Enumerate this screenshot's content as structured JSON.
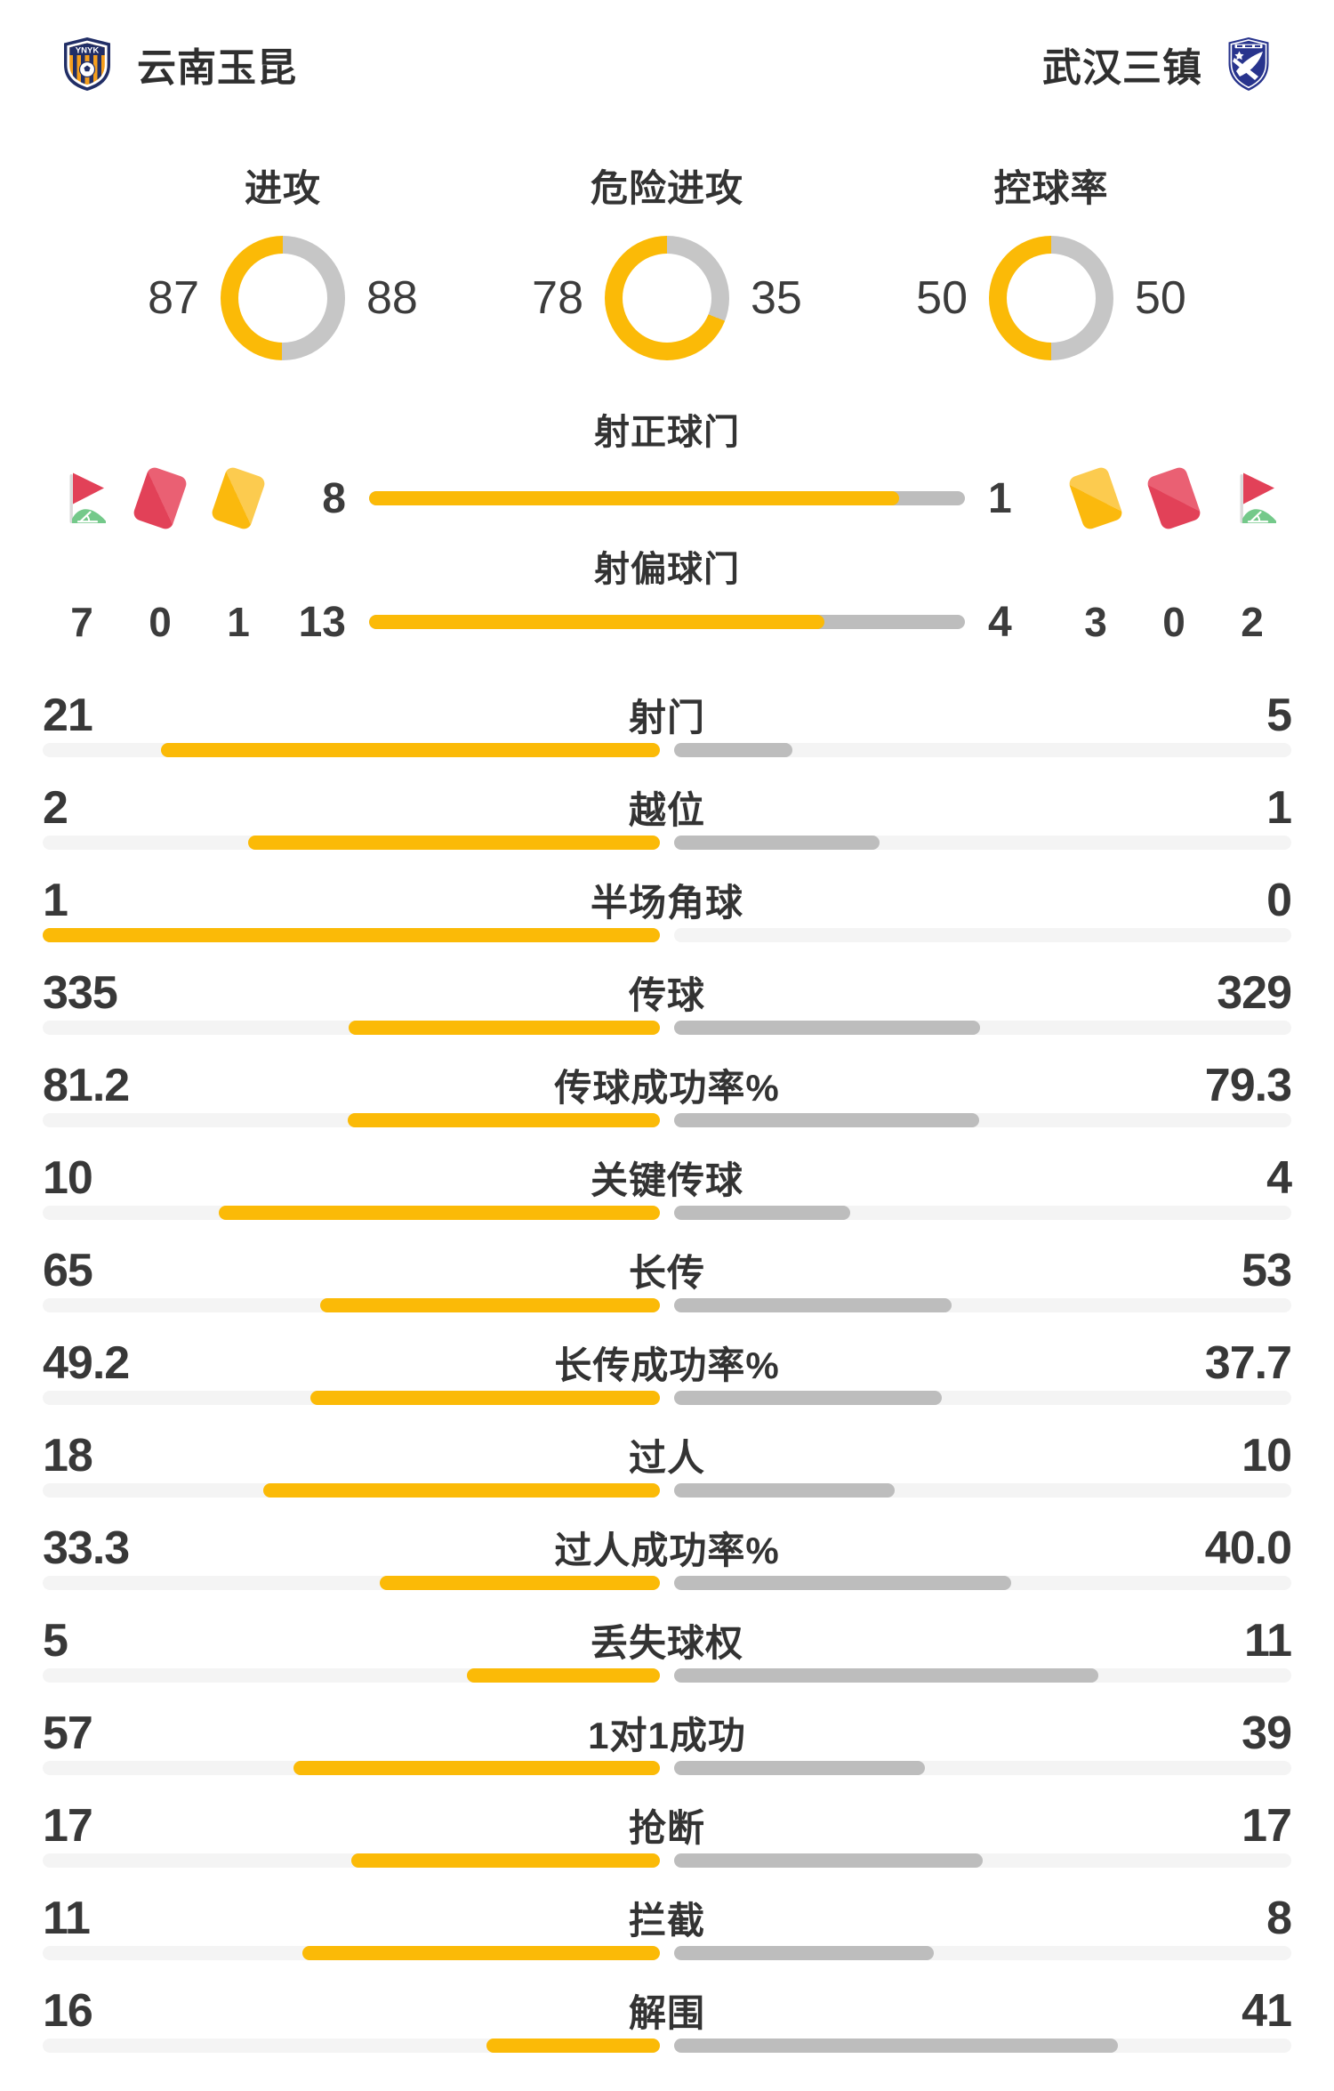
{
  "colors": {
    "accent_yellow": "#FBBA07",
    "bar_gray": "#BDBDBD",
    "bar_track": "#F4F4F4",
    "donut_gray": "#C6C6C6",
    "card_red": "#E24158",
    "card_red_light": "#EA6073",
    "card_yellow": "#FBB90D",
    "card_yellow_light": "#FCCB4F",
    "flag_green": "#74C98A",
    "text_dark": "#3C3C3C",
    "home_navy": "#212E66",
    "home_orange": "#F49E1E",
    "away_navy": "#28348D"
  },
  "header": {
    "home": {
      "name": "云南玉昆",
      "logo_text": "YNYK"
    },
    "away": {
      "name": "武汉三镇"
    }
  },
  "donuts": [
    {
      "title": "进攻",
      "home": "87",
      "away": "88"
    },
    {
      "title": "危险进攻",
      "home": "78",
      "away": "35"
    },
    {
      "title": "控球率",
      "home": "50",
      "away": "50"
    }
  ],
  "shots": {
    "rows": [
      {
        "label": "射正球门",
        "home": "8",
        "away": "1"
      },
      {
        "label": "射偏球门",
        "home": "13",
        "away": "4"
      }
    ],
    "home_discipline": [
      {
        "icon": "corner-flag",
        "count": "7"
      },
      {
        "icon": "red-card",
        "count": "0"
      },
      {
        "icon": "yellow-card",
        "count": "1"
      }
    ],
    "away_discipline": [
      {
        "icon": "yellow-card",
        "count": "3"
      },
      {
        "icon": "red-card",
        "count": "0"
      },
      {
        "icon": "corner-flag",
        "count": "2"
      }
    ]
  },
  "stats": [
    {
      "label": "射门",
      "home": "21",
      "away": "5"
    },
    {
      "label": "越位",
      "home": "2",
      "away": "1"
    },
    {
      "label": "半场角球",
      "home": "1",
      "away": "0"
    },
    {
      "label": "传球",
      "home": "335",
      "away": "329"
    },
    {
      "label": "传球成功率%",
      "home": "81.2",
      "away": "79.3"
    },
    {
      "label": "关键传球",
      "home": "10",
      "away": "4"
    },
    {
      "label": "长传",
      "home": "65",
      "away": "53"
    },
    {
      "label": "长传成功率%",
      "home": "49.2",
      "away": "37.7"
    },
    {
      "label": "过人",
      "home": "18",
      "away": "10"
    },
    {
      "label": "过人成功率%",
      "home": "33.3",
      "away": "40.0"
    },
    {
      "label": "丢失球权",
      "home": "5",
      "away": "11"
    },
    {
      "label": "1对1成功",
      "home": "57",
      "away": "39"
    },
    {
      "label": "抢断",
      "home": "17",
      "away": "17"
    },
    {
      "label": "拦截",
      "home": "11",
      "away": "8"
    },
    {
      "label": "解围",
      "home": "16",
      "away": "41"
    }
  ]
}
